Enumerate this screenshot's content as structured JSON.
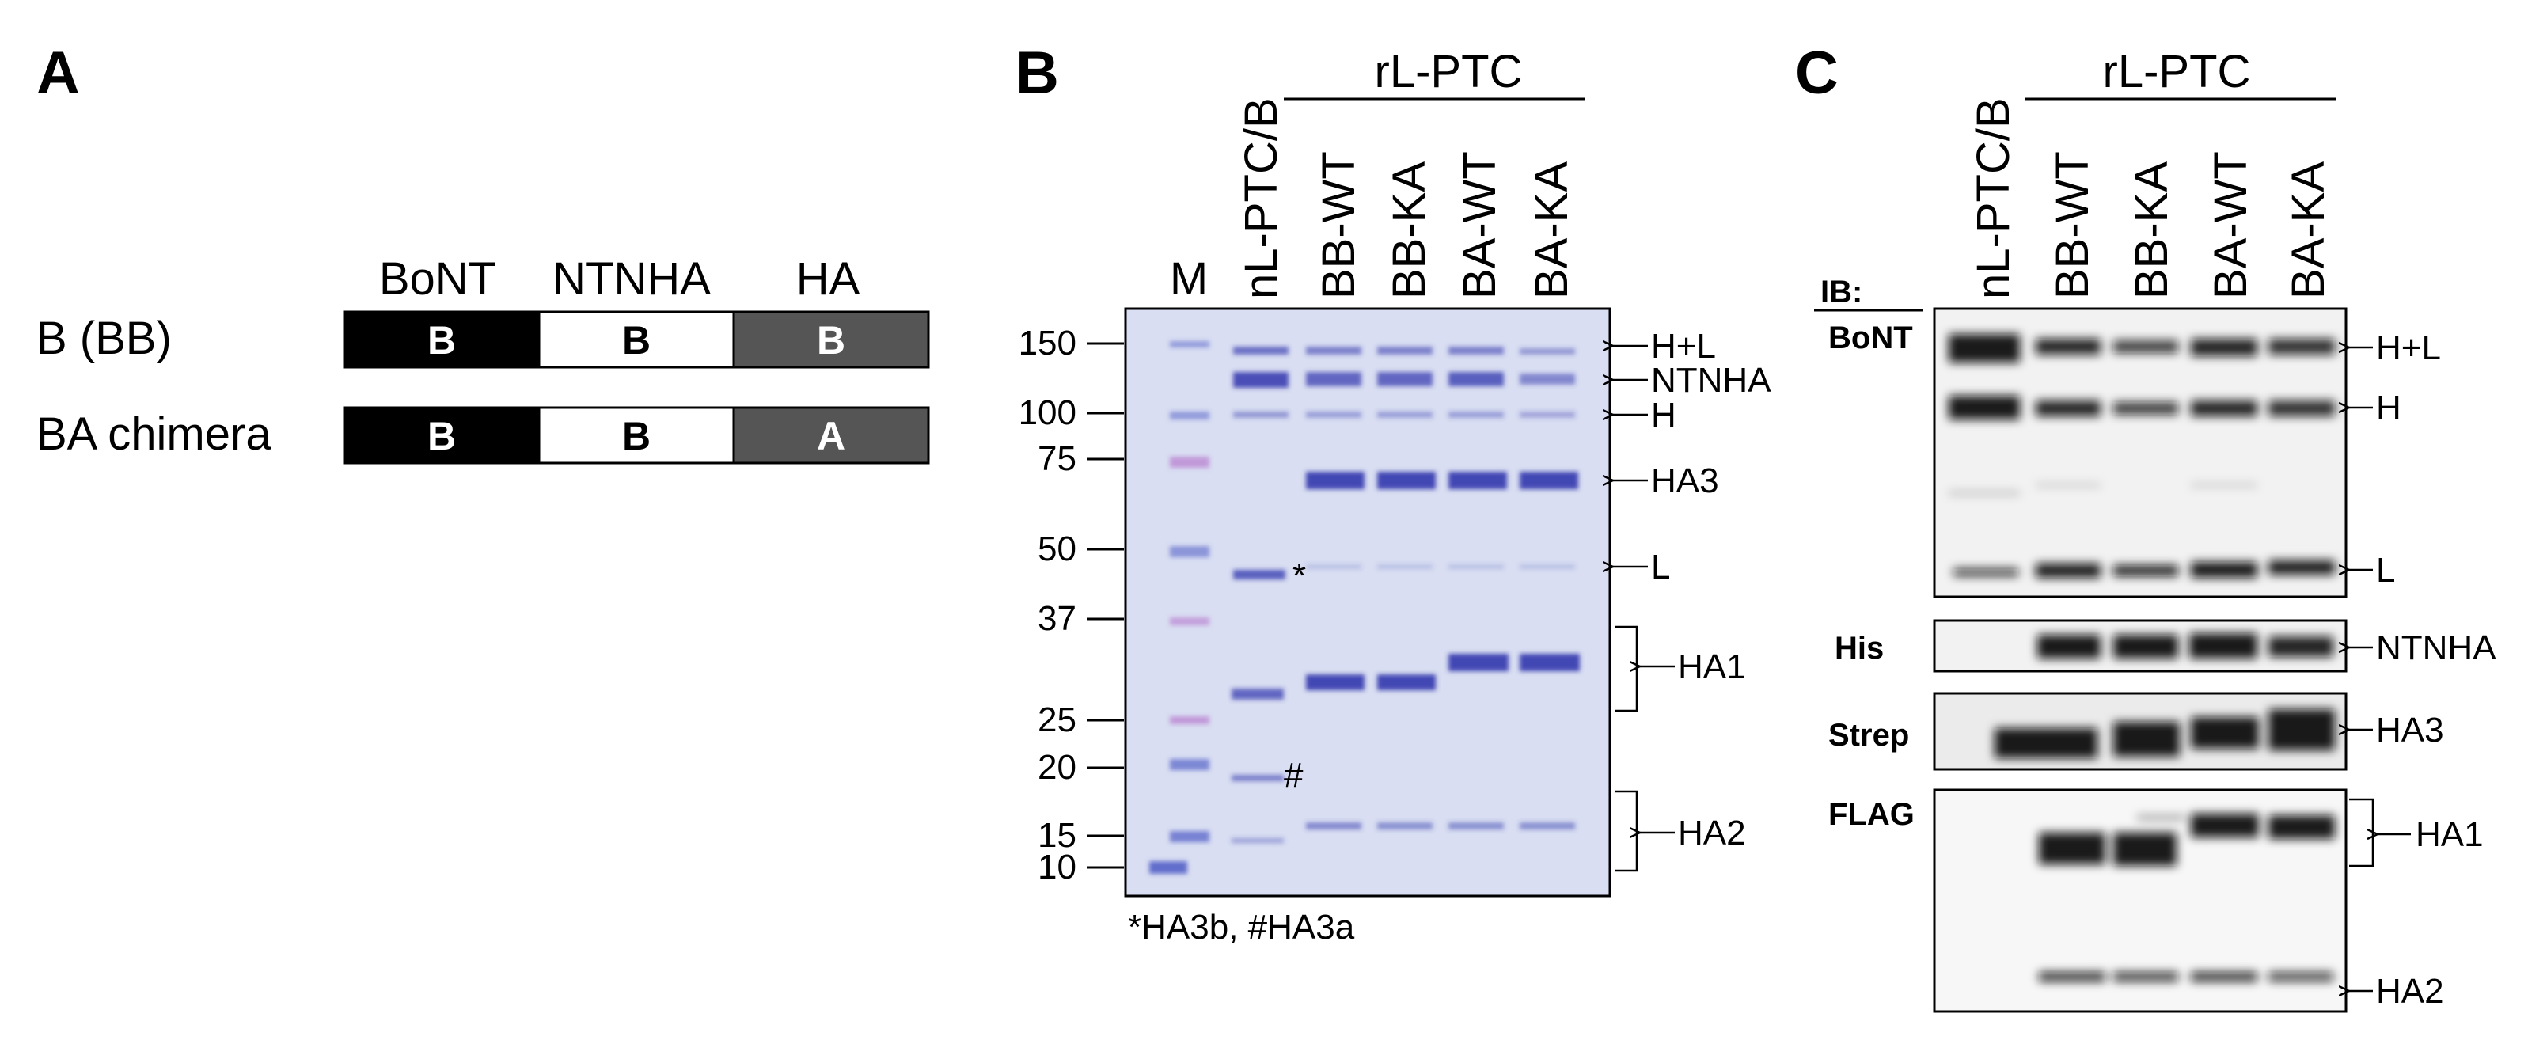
{
  "panel_a": {
    "letter": "A",
    "column_headers": [
      "BoNT",
      "NTNHA",
      "HA"
    ],
    "constructs": [
      {
        "label": "B (BB)",
        "segments": [
          "B",
          "B",
          "B"
        ]
      },
      {
        "label": "BA chimera",
        "segments": [
          "B",
          "B",
          "A"
        ]
      }
    ],
    "colors": {
      "bont": "#000000",
      "ntnha": "#ffffff",
      "ha": "#555555",
      "text_on_dark": "#ffffff",
      "text_on_light": "#000000"
    }
  },
  "panel_b": {
    "letter": "B",
    "group_label": "rL-PTC",
    "lanes": [
      "M",
      "nL-PTC/B",
      "BB-WT",
      "BB-KA",
      "BA-WT",
      "BA-KA"
    ],
    "mw_markers": [
      "150",
      "100",
      "75",
      "50",
      "37",
      "25",
      "20",
      "15",
      "10"
    ],
    "right_labels": [
      "H+L",
      "NTNHA",
      "H",
      "HA3",
      "L",
      "HA1",
      "HA2"
    ],
    "band_marks": [
      "*",
      "#"
    ],
    "footnote": "*HA3b, #HA3a",
    "colors": {
      "gel_background": "#d9def2",
      "band": "#3a3fb0",
      "marker_band": "#5563c8"
    }
  },
  "panel_c": {
    "letter": "C",
    "group_label": "rL-PTC",
    "lanes": [
      "nL-PTC/B",
      "BB-WT",
      "BB-KA",
      "BA-WT",
      "BA-KA"
    ],
    "ib_header": "IB:",
    "blots": [
      {
        "antibody": "BoNT",
        "labels": [
          "H+L",
          "H",
          "L"
        ]
      },
      {
        "antibody": "His",
        "labels": [
          "NTNHA"
        ]
      },
      {
        "antibody": "Strep",
        "labels": [
          "HA3"
        ]
      },
      {
        "antibody": "FLAG",
        "labels": [
          "HA1",
          "HA2"
        ]
      }
    ],
    "colors": {
      "blot_background": "#f2f2f2",
      "band": "#111111"
    }
  }
}
